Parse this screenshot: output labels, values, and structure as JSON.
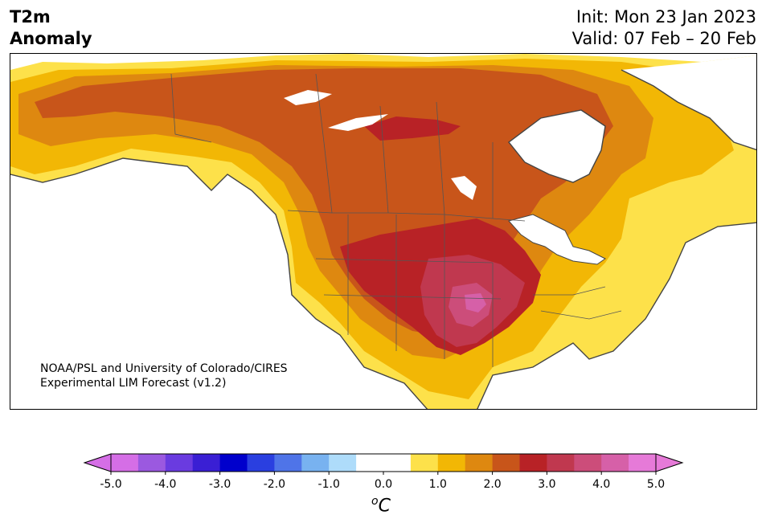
{
  "header": {
    "title_line1": "T2m",
    "title_line2": "Anomaly",
    "init": "Init: Mon 23 Jan 2023",
    "valid": "Valid: 07 Feb – 20 Feb"
  },
  "credit": {
    "line1": "NOAA/PSL and University of Colorado/CIRES",
    "line2": "Experimental LIM Forecast (v1.2)"
  },
  "colorbar": {
    "unit_main": "C",
    "unit_sup": "o",
    "tick_labels": [
      "-5.0",
      "-4.0",
      "-3.0",
      "-2.0",
      "-1.0",
      "0.0",
      "1.0",
      "2.0",
      "3.0",
      "4.0",
      "5.0"
    ],
    "colors": [
      "#d56ee6",
      "#9b59e0",
      "#6a3be0",
      "#3a1fd4",
      "#0000cc",
      "#2a3fe0",
      "#4f74e8",
      "#78b2f0",
      "#aedcfa",
      "#ffffff",
      "#ffffff",
      "#fde14a",
      "#f2b705",
      "#de8810",
      "#c8551a",
      "#b82226",
      "#c0384f",
      "#cc4d7a",
      "#d660a8",
      "#e67ad8"
    ],
    "under_color": "#d56ee6",
    "over_color": "#e67ad8"
  },
  "palette": {
    "land_bg": "#ffffff",
    "level_0_5": "#fde14a",
    "level_1_0": "#f2b705",
    "level_1_5": "#de8810",
    "level_2_0": "#c8551a",
    "level_2_5": "#b82226",
    "level_3_0": "#c0384f",
    "level_3_5": "#cc4d7a",
    "level_4_0": "#d660a8",
    "coast": "#444444"
  },
  "map": {
    "region": "North America",
    "field": "2-m temperature anomaly"
  }
}
